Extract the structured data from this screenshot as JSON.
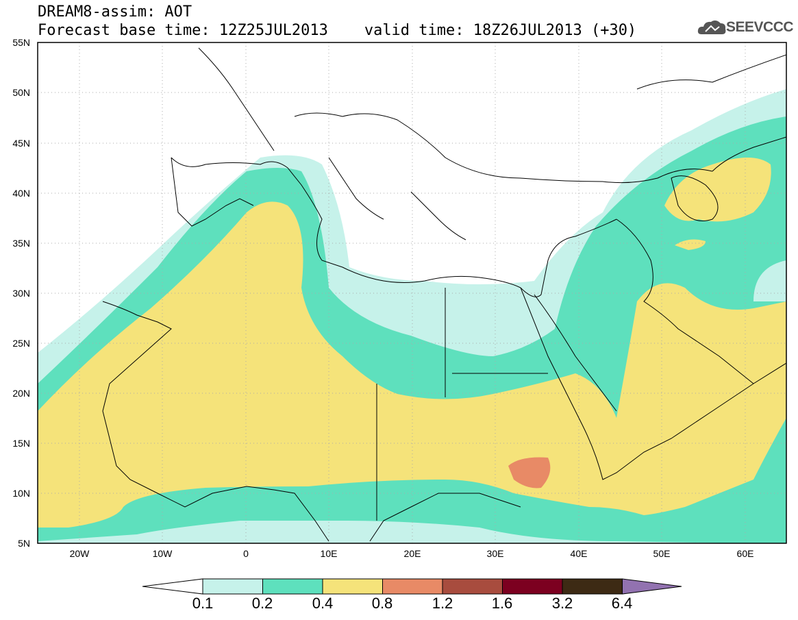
{
  "header": {
    "title_line1": "DREAM8-assim: AOT",
    "title_line2": "Forecast base time: 12Z25JUL2013    valid time: 18Z26JUL2013 (+30)",
    "logo_text": "SEEVCCC",
    "logo_icon": "cloud-icon"
  },
  "map": {
    "variable": "AOT",
    "lat_ticks": [
      "55N",
      "50N",
      "45N",
      "40N",
      "35N",
      "30N",
      "25N",
      "20N",
      "15N",
      "10N",
      "5N"
    ],
    "lon_ticks": [
      "20W",
      "10W",
      "0",
      "10E",
      "20E",
      "30E",
      "40E",
      "50E",
      "60E"
    ],
    "extent": {
      "lon": [
        -25,
        65
      ],
      "lat": [
        5,
        55
      ]
    }
  },
  "colorbar": {
    "labels": [
      "0.1",
      "0.2",
      "0.4",
      "0.8",
      "1.2",
      "1.6",
      "3.2",
      "6.4"
    ],
    "colors": [
      "#c6f2ea",
      "#5ee0bd",
      "#f5e37a",
      "#e88a66",
      "#a84c3e",
      "#7c0020",
      "#3d2a14",
      "#9272b0"
    ],
    "under_color": "#ffffff"
  }
}
